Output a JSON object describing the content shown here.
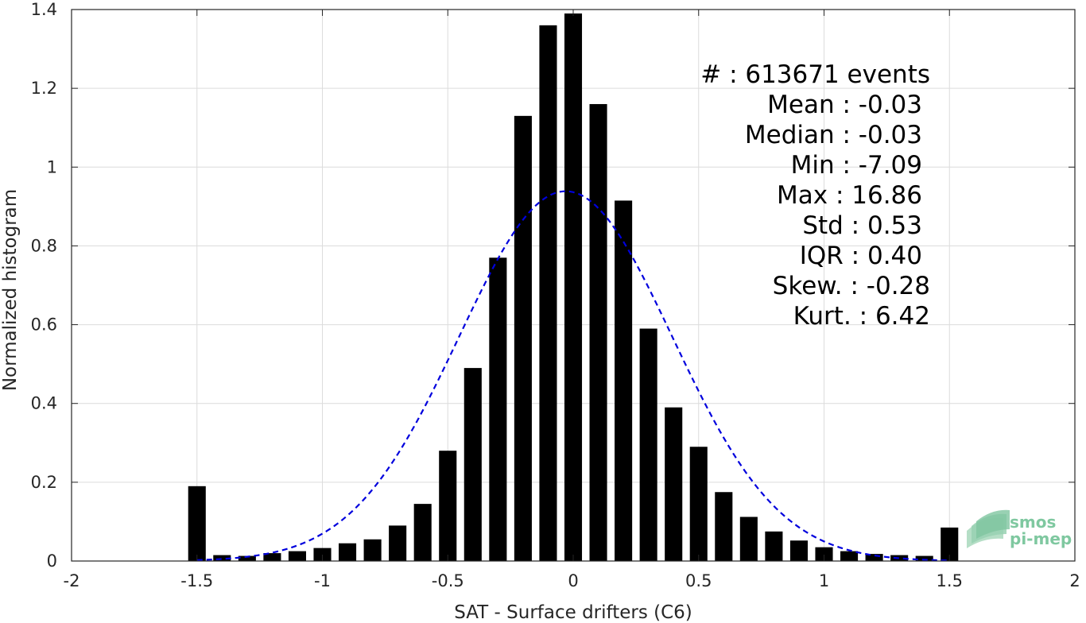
{
  "chart_data": {
    "type": "bar",
    "xlabel": "SAT - Surface drifters (C6)",
    "ylabel": "Normalized histogram",
    "xlim": [
      -2,
      2
    ],
    "ylim": [
      0,
      1.4
    ],
    "xticks": [
      -2,
      -1.5,
      -1,
      -0.5,
      0,
      0.5,
      1,
      1.5,
      2
    ],
    "xtick_labels": [
      "-2",
      "-1.5",
      "-1",
      "-0.5",
      "0",
      "0.5",
      "1",
      "1.5",
      "2"
    ],
    "yticks": [
      0,
      0.2,
      0.4,
      0.6,
      0.8,
      1,
      1.2,
      1.4
    ],
    "ytick_labels": [
      "0",
      "0.2",
      "0.4",
      "0.6",
      "0.8",
      "1",
      "1.2",
      "1.4"
    ],
    "grid": true,
    "bar_color": "#000000",
    "bar_width": 0.07,
    "x": [
      -1.5,
      -1.4,
      -1.3,
      -1.2,
      -1.1,
      -1.0,
      -0.9,
      -0.8,
      -0.7,
      -0.6,
      -0.5,
      -0.4,
      -0.3,
      -0.2,
      -0.1,
      0.0,
      0.1,
      0.2,
      0.3,
      0.4,
      0.5,
      0.6,
      0.7,
      0.8,
      0.9,
      1.0,
      1.1,
      1.2,
      1.3,
      1.4,
      1.5
    ],
    "values": [
      0.19,
      0.015,
      0.013,
      0.02,
      0.025,
      0.033,
      0.045,
      0.055,
      0.09,
      0.145,
      0.28,
      0.49,
      0.77,
      1.13,
      1.36,
      1.39,
      1.16,
      0.915,
      0.59,
      0.39,
      0.29,
      0.175,
      0.112,
      0.075,
      0.052,
      0.035,
      0.025,
      0.018,
      0.015,
      0.013,
      0.085
    ],
    "fit": {
      "type": "gaussian",
      "color": "#0000dd",
      "style": "dashed",
      "mean": -0.03,
      "std": 0.425,
      "x_range": [
        -1.5,
        1.5
      ]
    },
    "annotations": [
      "#  : 613671 events",
      "Mean : -0.03",
      "Median : -0.03",
      "Min : -7.09",
      "Max : 16.86",
      "Std : 0.53",
      "IQR : 0.40",
      "Skew. : -0.28",
      "Kurt. : 6.42"
    ],
    "logo": {
      "line1": "smos",
      "line2": "pi-mep"
    }
  }
}
